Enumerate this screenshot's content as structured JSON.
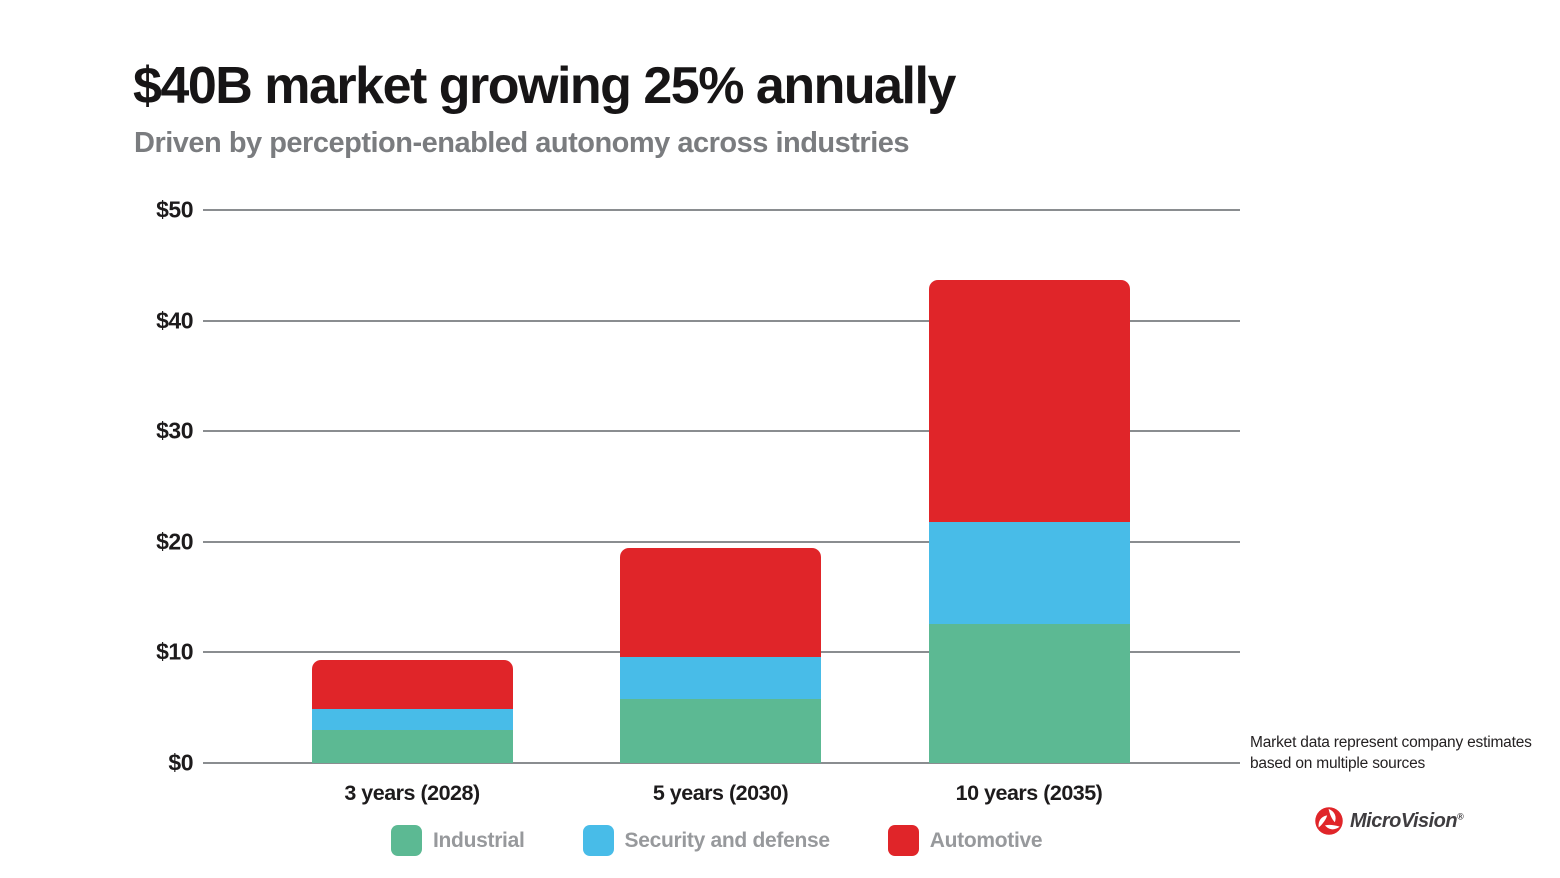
{
  "header": {
    "title": "$40B market growing 25% annually",
    "subtitle": "Driven by perception-enabled autonomy across industries"
  },
  "chart_data": {
    "type": "bar",
    "stacked": true,
    "title": "$40B market growing 25% annually",
    "subtitle": "Driven by perception-enabled autonomy across industries",
    "categories": [
      "3 years (2028)",
      "5 years (2030)",
      "10 years (2035)"
    ],
    "series": [
      {
        "name": "Industrial",
        "color": "#5cb993",
        "values": [
          3.0,
          5.8,
          12.6
        ]
      },
      {
        "name": "Security and defense",
        "color": "#48bce8",
        "values": [
          1.9,
          3.8,
          9.2
        ]
      },
      {
        "name": "Automotive",
        "color": "#e02529",
        "values": [
          4.4,
          9.8,
          21.9
        ]
      }
    ],
    "totals": [
      9.3,
      19.4,
      43.7
    ],
    "unit": "USD billions",
    "xlabel": "",
    "ylabel": "",
    "ylim": [
      0,
      50
    ],
    "yticks": [
      {
        "value": 0,
        "label": "$0"
      },
      {
        "value": 10,
        "label": "$10"
      },
      {
        "value": 20,
        "label": "$20"
      },
      {
        "value": 30,
        "label": "$30"
      },
      {
        "value": 40,
        "label": "$40"
      },
      {
        "value": 50,
        "label": "$50"
      }
    ],
    "grid": true,
    "gridline_color": "#8a8d90",
    "legend_position": "bottom"
  },
  "footnote": {
    "line1": "Market data represent company estimates",
    "line2": "based on multiple sources"
  },
  "logo": {
    "wordmark": "MicroVision",
    "registered_mark": "®",
    "icon_color": "#e02529",
    "text_color": "#3f3d40"
  }
}
